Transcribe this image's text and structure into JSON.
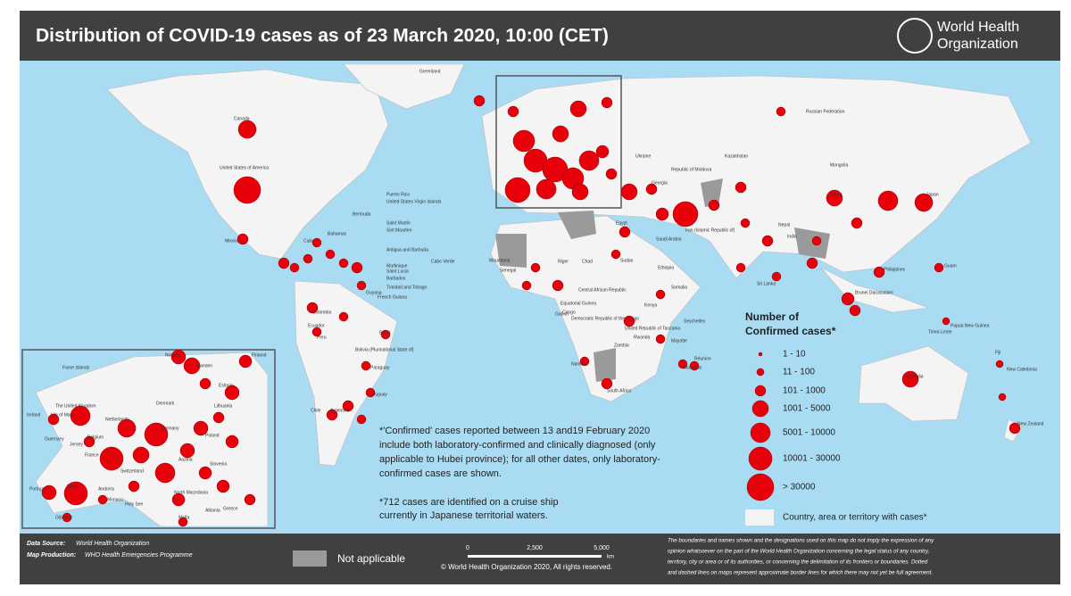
{
  "header": {
    "title": "Distribution of COVID-19  cases as of 23 March 2020, 10:00 (CET)",
    "logo": [
      "World Health",
      "Organization"
    ]
  },
  "map": {
    "country_labels": [
      "Greenland",
      "Canada",
      "United States of America",
      "Russian Federation",
      "Mongolia",
      "Kazakhstan",
      "China",
      "Japan",
      "Nepal",
      "India",
      "Sri Lanka",
      "Philippines",
      "Guam",
      "Brunei Darussalam",
      "Papua New Guinea",
      "Australia",
      "New Caledonia",
      "New Zealand",
      "Fiji",
      "Timor-Leste",
      "Bermuda",
      "Bahamas",
      "Cuba",
      "Mexico",
      "Puerto Rico",
      "United States Virgin Islands",
      "Saint Martin",
      "Sint Maarten",
      "Antigua and Barbuda",
      "Martinique",
      "Saint Lucia",
      "Barbados",
      "Trinidad and Tobago",
      "French Guiana",
      "Guyana",
      "Colombia",
      "Ecuador",
      "Peru",
      "Brazil",
      "Bolivia (Plurinational State of)",
      "Paraguay",
      "Uruguay",
      "Argentina",
      "Chile",
      "Cabo Verde",
      "Mauritania",
      "Senegal",
      "Niger",
      "Chad",
      "Sudan",
      "Ethiopia",
      "Somalia",
      "Kenya",
      "Central African Republic",
      "Congo",
      "Democratic Republic of the Congo",
      "United Republic of Tanzania",
      "Seychelles",
      "Rwanda",
      "Zambia",
      "Namibia",
      "Mauritius",
      "Mayotte",
      "Réunion",
      "South Africa",
      "Equatorial Guinea",
      "Gabon",
      "Egypt",
      "Saudi Arabia",
      "Iran (Islamic Republic of)",
      "Georgia",
      "Republic of Moldova",
      "Ukraine"
    ],
    "inset_labels": [
      "Faroe Islands",
      "Norway",
      "Sweden",
      "Finland",
      "Estonia",
      "The United Kingdom",
      "Denmark",
      "Lithuania",
      "Ireland",
      "Isle of Man",
      "Netherlands",
      "Belgium",
      "Germany",
      "Poland",
      "Guernsey",
      "Jersey",
      "France",
      "Switzerland",
      "Austria",
      "Slovenia",
      "Portugal",
      "Spain",
      "Andorra",
      "Monaco",
      "Holy See",
      "North Macedonia",
      "Albania",
      "Greece",
      "Gibraltar",
      "Malta"
    ]
  },
  "legend": {
    "title": [
      "Number of",
      "Confirmed cases*"
    ],
    "classes": [
      "1 - 10",
      "11 - 100",
      "101 - 1000",
      "1001 - 5000",
      "5001 - 10000",
      "10001 - 30000",
      "> 30000"
    ],
    "with_cases": "Country, area or territory with cases*"
  },
  "notes": {
    "confirmed": [
      "*'Confirmed' cases reported between 13 and19 February 2020",
      "include both laboratory-confirmed and clinically diagnosed (only",
      "applicable to Hubei province); for all other dates, only laboratory-",
      "confirmed cases are shown."
    ],
    "cruise": [
      "*712 cases are identified on a cruise ship",
      "currently in Japanese territorial waters."
    ]
  },
  "footer": {
    "data_source_label": "Data Source:",
    "data_source": "World Health Organization",
    "map_production_label": "Map Production:",
    "map_production": "WHO Health Emergencies Programme",
    "not_applicable": "Not applicable",
    "scale": [
      "0",
      "2,500",
      "5,000"
    ],
    "scale_unit": "km",
    "copyright": "© World Health Organization  2020,  All rights reserved.",
    "disclaimer": [
      "The boundaries and names shown and the designations used on this map do not imply the expression of any",
      "opinion whatsoever on the part of the World Health Organization concerning the legal status of any country,",
      "territory, city or area or of its authorities, or concerning the delimitation of its frontiers or boundaries. Dotted",
      "and dashed lines on maps represent approximate border lines for which there may not yet be full agreement."
    ]
  }
}
